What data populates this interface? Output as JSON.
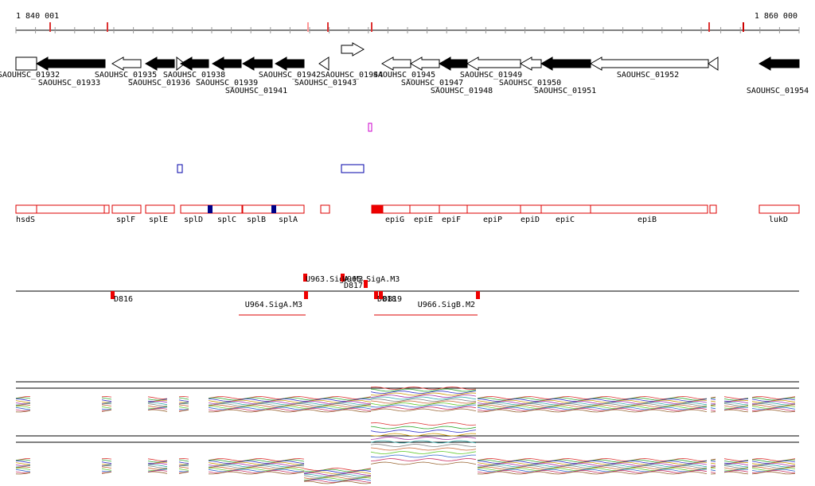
{
  "ruler": {
    "start": "1 840 001",
    "end": "1 860 000"
  },
  "genes": [
    "SAOUHSC_01932",
    "SAOUHSC_01933",
    "SAOUHSC_01935",
    "SAOUHSC_01936",
    "SAOUHSC_01938",
    "SAOUHSC_01939",
    "SAOUHSC_01941",
    "SAOUHSC_01942",
    "SAOUHSC_01943",
    "SAOUHSC_01944",
    "SAOUHSC_01945",
    "SAOUHSC_01947",
    "SAOUHSC_01948",
    "SAOUHSC_01949",
    "SAOUHSC_01950",
    "SAOUHSC_01951",
    "SAOUHSC_01952",
    "SAOUHSC_01954"
  ],
  "regions": [
    "hsdS",
    "splF",
    "splE",
    "splD",
    "splC",
    "splB",
    "splA",
    "epiG",
    "epiE",
    "epiF",
    "epiP",
    "epiD",
    "epiC",
    "epiB",
    "lukD"
  ],
  "promoters": [
    "U963.SigA.M3",
    "U965.SigA.M3",
    "D817",
    "D816",
    "U964.SigA.M3",
    "D818",
    "D819",
    "U966.SigB.M2"
  ]
}
